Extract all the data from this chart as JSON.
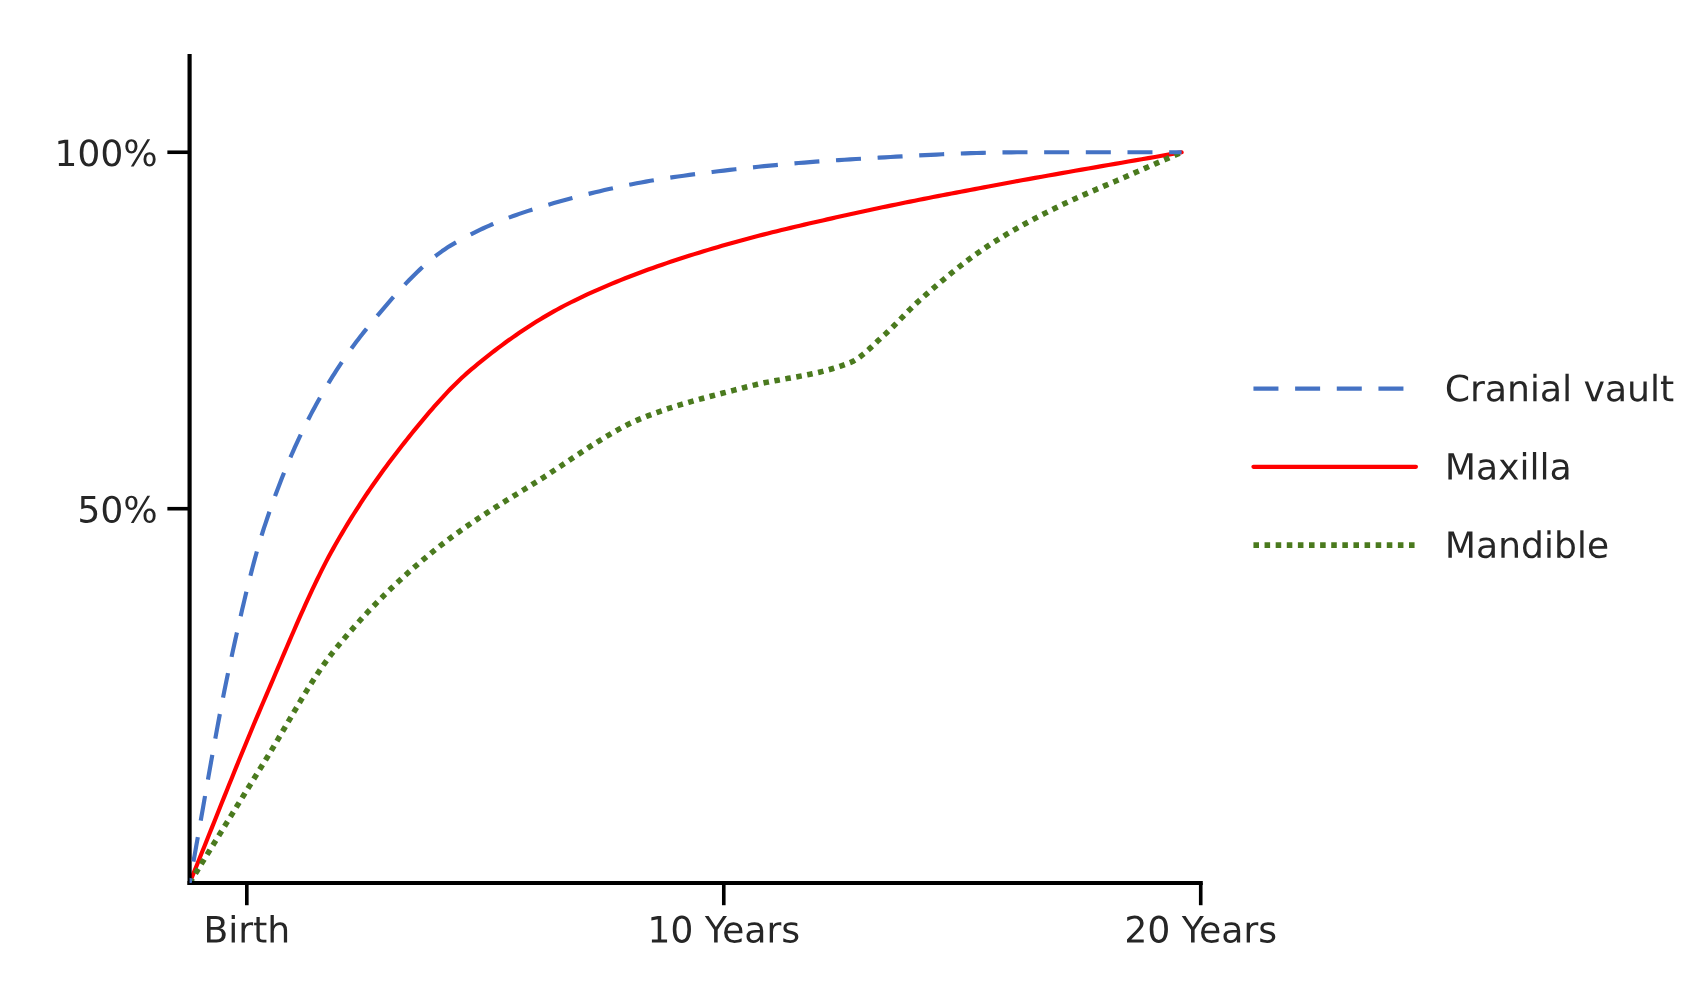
{
  "chart_data": {
    "type": "line",
    "xlim": [
      -1.2,
      20
    ],
    "ylim": [
      -2.5,
      113.5
    ],
    "xticks": [
      {
        "value": 0,
        "label": "Birth"
      },
      {
        "value": 10,
        "label": "10 Years"
      },
      {
        "value": 20,
        "label": "20 Years"
      }
    ],
    "yticks": [
      {
        "value": 50,
        "label": "50%"
      },
      {
        "value": 100,
        "label": "100%"
      }
    ],
    "grid": false,
    "legend": "right",
    "marker": "none",
    "series": [
      {
        "name": "Cranial vault",
        "color": "#4472c4",
        "line_style": "dashed",
        "x": [
          -1.2,
          -0.36,
          0.36,
          1.38,
          2.53,
          4.27,
          6.15,
          9.04,
          12.65,
          16.27,
          19.6
        ],
        "values": [
          -2.5,
          28,
          47.3,
          63.7,
          75.4,
          86.9,
          92.3,
          96.6,
          99,
          100,
          100
        ]
      },
      {
        "name": "Maxilla",
        "color": "#ff0000",
        "line_style": "solid",
        "x": [
          -1.2,
          0.36,
          1.81,
          3.26,
          4.7,
          6.87,
          9.77,
          12.65,
          15.55,
          19.6
        ],
        "values": [
          -2.5,
          23.1,
          44.4,
          58.9,
          69.5,
          79.2,
          86.5,
          91.3,
          95.2,
          100
        ]
      },
      {
        "name": "Mandible",
        "color": "#4a7a1e",
        "line_style": "dotted",
        "x": [
          -1.2,
          0.36,
          1.81,
          3.98,
          6.15,
          8.32,
          10.49,
          12.65,
          13.37,
          14.1,
          15.55,
          16.99,
          18.44,
          19.6
        ],
        "values": [
          -2.5,
          14.4,
          29.9,
          44.4,
          54.1,
          62.8,
          67.1,
          70.5,
          74.4,
          79.2,
          86.9,
          92.3,
          96.6,
          100
        ]
      }
    ]
  }
}
